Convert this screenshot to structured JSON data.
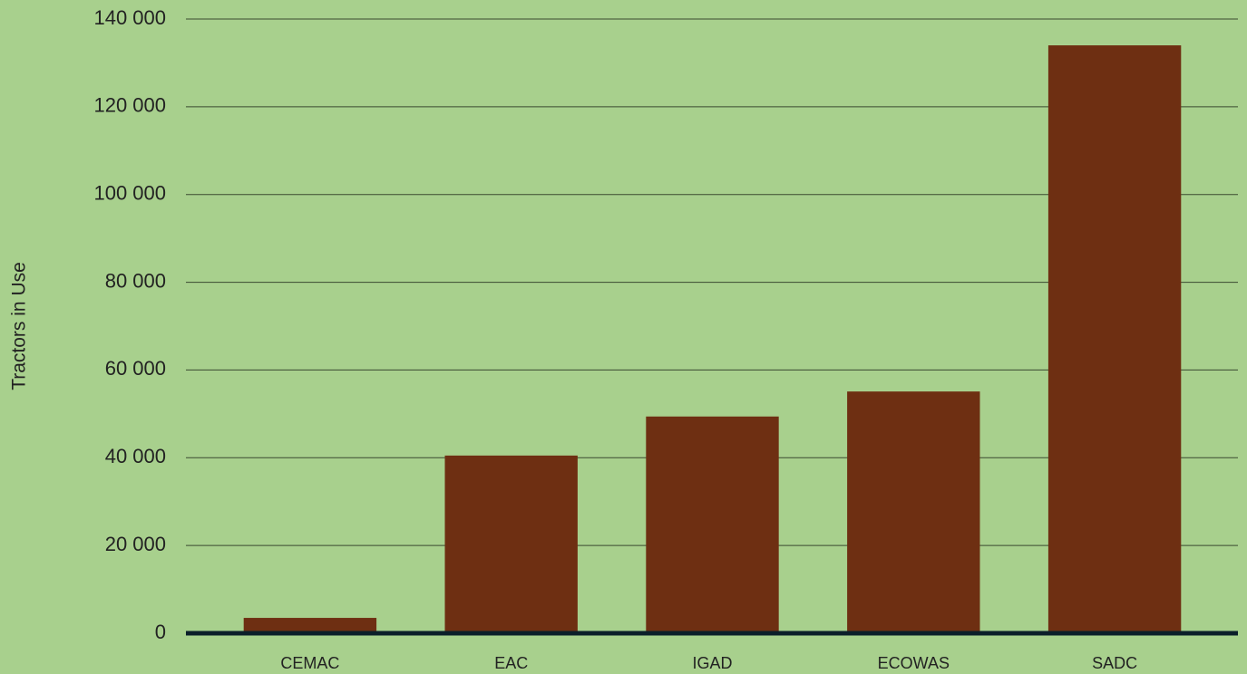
{
  "chart_data": {
    "type": "bar",
    "ylabel": "Tractors in Use",
    "categories": [
      "CEMAC",
      "EAC",
      "IGAD",
      "ECOWAS",
      "SADC"
    ],
    "values": [
      3500,
      40500,
      49400,
      55100,
      134000
    ],
    "color": "#6e2f12",
    "ylim": [
      0,
      140000
    ],
    "yticks": [
      0,
      {
        "value": 20000,
        "label": "20 000"
      },
      {
        "value": 40000,
        "label": "40 000"
      },
      {
        "value": 60000,
        "label": "60 000"
      },
      {
        "value": 80000,
        "label": "80 000"
      },
      {
        "value": 100000,
        "label": "100 000"
      },
      {
        "value": 120000,
        "label": "120 000"
      },
      {
        "value": 140000,
        "label": "140 000"
      }
    ],
    "grid": true
  }
}
